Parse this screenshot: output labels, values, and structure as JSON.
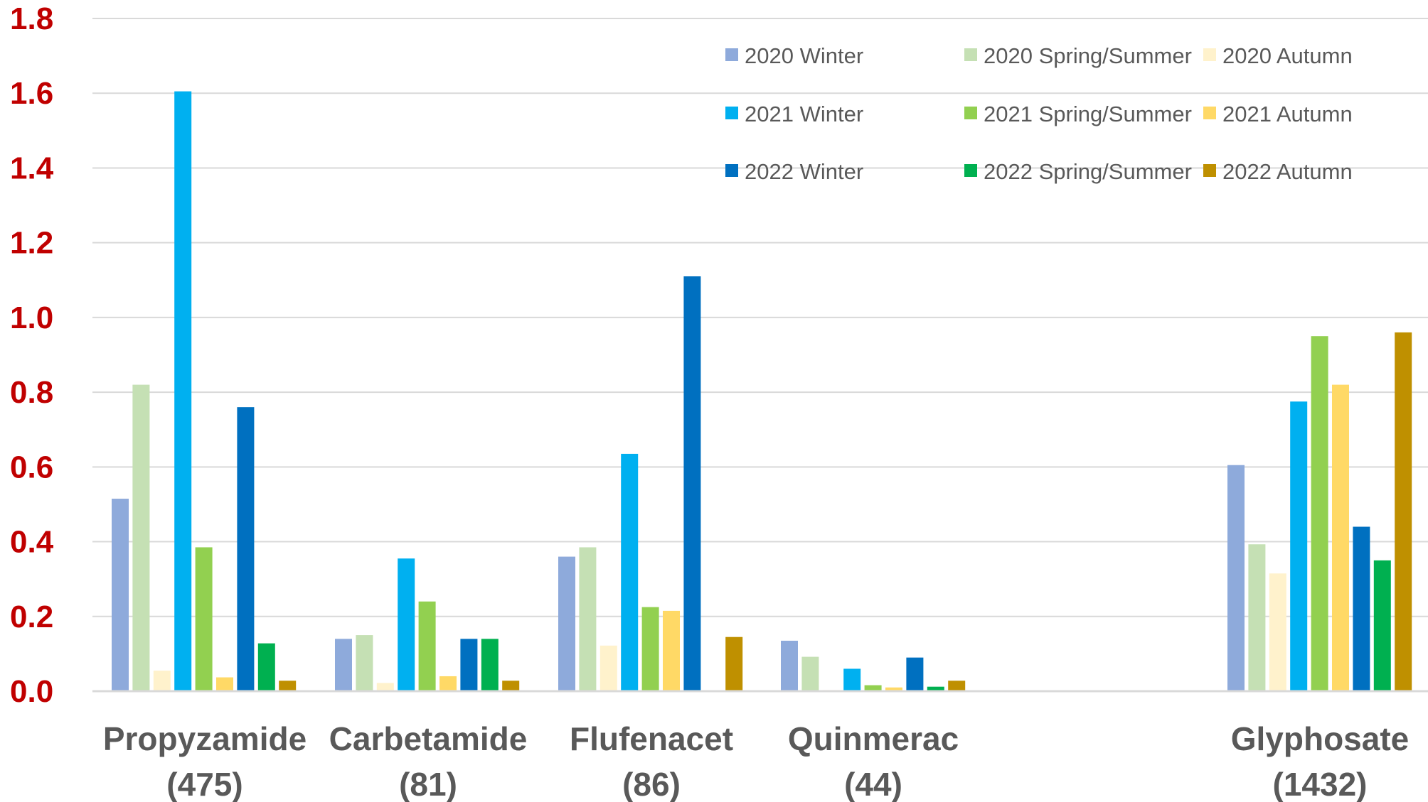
{
  "chart_data": {
    "type": "bar",
    "title": "",
    "xlabel": "",
    "ylabel": "",
    "ylim": [
      0,
      1.8
    ],
    "yticks": [
      "0.0",
      "0.2",
      "0.4",
      "0.6",
      "0.8",
      "1.0",
      "1.2",
      "1.4",
      "1.6",
      "1.8"
    ],
    "grid": true,
    "legend_position": "top-right",
    "categories": [
      {
        "name": "Propyzamide",
        "count": "(475)"
      },
      {
        "name": "Carbetamide",
        "count": "(81)"
      },
      {
        "name": "Flufenacet",
        "count": "(86)"
      },
      {
        "name": "Quinmerac",
        "count": "(44)"
      },
      {
        "name": "Glyphosate",
        "count": "(1432)"
      }
    ],
    "series": [
      {
        "name": "2020 Winter",
        "color": "#8eaadb",
        "values": [
          0.515,
          0.14,
          0.36,
          0.135,
          0.605
        ]
      },
      {
        "name": "2020 Spring/Summer",
        "color": "#c5e0b4",
        "values": [
          0.82,
          0.15,
          0.385,
          0.092,
          0.393
        ]
      },
      {
        "name": "2020 Autumn",
        "color": "#fff2cc",
        "values": [
          0.055,
          0.022,
          0.122,
          0.003,
          0.315
        ]
      },
      {
        "name": "2021 Winter",
        "color": "#00b0f0",
        "values": [
          1.605,
          0.355,
          0.635,
          0.06,
          0.775
        ]
      },
      {
        "name": "2021 Spring/Summer",
        "color": "#92d050",
        "values": [
          0.385,
          0.24,
          0.225,
          0.016,
          0.95
        ]
      },
      {
        "name": "2021 Autumn",
        "color": "#ffd966",
        "values": [
          0.037,
          0.04,
          0.215,
          0.01,
          0.82
        ]
      },
      {
        "name": "2022 Winter",
        "color": "#0070c0",
        "values": [
          0.76,
          0.14,
          1.11,
          0.09,
          0.44
        ]
      },
      {
        "name": "2022 Spring/Summer",
        "color": "#00b050",
        "values": [
          0.128,
          0.14,
          null,
          0.012,
          0.35
        ]
      },
      {
        "name": "2022 Autumn",
        "color": "#bf9000",
        "values": [
          0.028,
          0.028,
          0.145,
          0.028,
          0.96
        ]
      }
    ]
  }
}
